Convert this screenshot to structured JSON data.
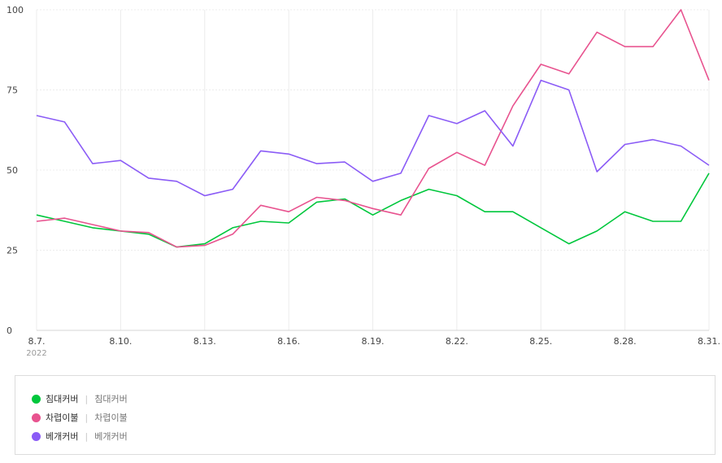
{
  "chart_data": {
    "type": "line",
    "x": [
      "8.7.",
      "8.8.",
      "8.9.",
      "8.10.",
      "8.11.",
      "8.12.",
      "8.13.",
      "8.14.",
      "8.15.",
      "8.16.",
      "8.17.",
      "8.18.",
      "8.19.",
      "8.20.",
      "8.21.",
      "8.22.",
      "8.23.",
      "8.24.",
      "8.25.",
      "8.26.",
      "8.27.",
      "8.28.",
      "8.29.",
      "8.30.",
      "8.31."
    ],
    "x_tick_labels": [
      "8.7.",
      "8.10.",
      "8.13.",
      "8.16.",
      "8.19.",
      "8.22.",
      "8.25.",
      "8.28.",
      "8.31."
    ],
    "x_sub_label": "2022",
    "y_ticks": [
      0,
      25,
      50,
      75,
      100
    ],
    "ylim": [
      0,
      100
    ],
    "grid": true,
    "legend_position": "bottom",
    "series": [
      {
        "name": "침대커버",
        "sub": "침대커버",
        "color": "#00c73c",
        "values": [
          36,
          34,
          32,
          31,
          30,
          26,
          27,
          32,
          34,
          33.5,
          40,
          41,
          36,
          40.5,
          44,
          42,
          37,
          37,
          32,
          27,
          31,
          37,
          34,
          34,
          49
        ]
      },
      {
        "name": "차렵이불",
        "sub": "차렵이불",
        "color": "#e8538f",
        "values": [
          34,
          35,
          33,
          31,
          30.5,
          26,
          26.5,
          30,
          39,
          37,
          41.5,
          40.5,
          38,
          36,
          50.5,
          55.5,
          51.5,
          70,
          83,
          80,
          93,
          88.5,
          88.5,
          100,
          78
        ]
      },
      {
        "name": "베개커버",
        "sub": "베개커버",
        "color": "#8b5cf6",
        "values": [
          67,
          65,
          52,
          53,
          47.5,
          46.5,
          42,
          44,
          56,
          55,
          52,
          52.5,
          46.5,
          49,
          67,
          64.5,
          68.5,
          57.5,
          78,
          75,
          49.5,
          58,
          59.5,
          57.5,
          51.5
        ]
      }
    ]
  }
}
